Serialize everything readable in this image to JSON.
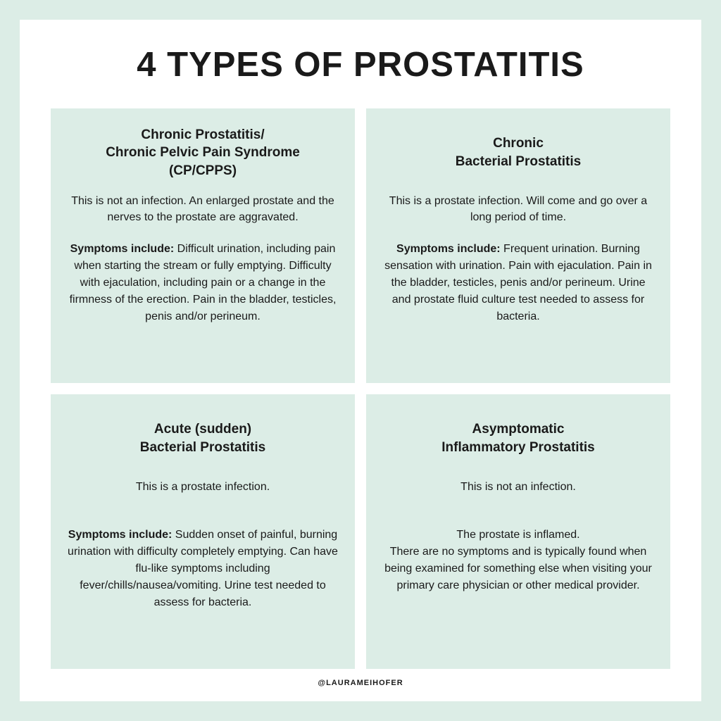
{
  "title": "4 TYPES OF PROSTATITIS",
  "footer": "@LAURAMEIHOFER",
  "colors": {
    "outer_bg": "#dcede6",
    "inner_bg": "#ffffff",
    "card_bg": "#dcede6",
    "text": "#1a1a1a"
  },
  "cards": [
    {
      "title": "Chronic Prostatitis/\nChronic Pelvic Pain Syndrome\n(CP/CPPS)",
      "desc": "This is not an infection. An enlarged prostate and the nerves to the prostate are aggravated.",
      "symptoms_label": "Symptoms include:",
      "symptoms": " Difficult urination, including pain when starting the stream or fully emptying. Difficulty with ejaculation, including pain or a change in the firmness of the erection. Pain in the bladder, testicles, penis and/or perineum."
    },
    {
      "title": "Chronic\nBacterial Prostatitis",
      "desc": "This is a prostate infection. Will come and go over a long period of time.",
      "symptoms_label": "Symptoms include:",
      "symptoms": " Frequent urination. Burning sensation with urination. Pain with ejaculation. Pain in the bladder, testicles, penis and/or perineum. Urine and prostate fluid culture test needed to assess for bacteria."
    },
    {
      "title": "Acute (sudden)\nBacterial Prostatitis",
      "desc": "This is a prostate infection.",
      "symptoms_label": "Symptoms include:",
      "symptoms": " Sudden onset of painful, burning urination with difficulty completely emptying. Can have flu-like symptoms including fever/chills/nausea/vomiting. Urine test needed to assess for bacteria."
    },
    {
      "title": "Asymptomatic\nInflammatory Prostatitis",
      "desc": "This is not an infection.",
      "symptoms_label": "",
      "symptoms": "The prostate is inflamed.\nThere are no symptoms and is typically found when being examined for something else when visiting your primary care physician or other medical provider."
    }
  ]
}
